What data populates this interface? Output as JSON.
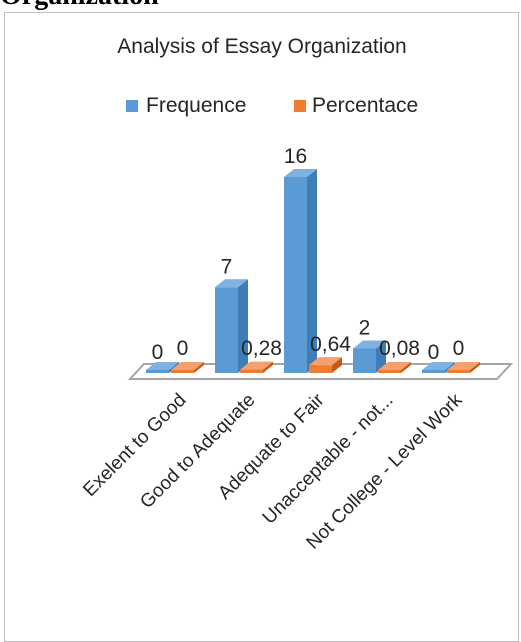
{
  "page": {
    "heading": "Organization"
  },
  "chart_data": {
    "type": "bar",
    "title": "Analysis of Essay Organization",
    "categories": [
      "Exelent to Good",
      "Good to Adequate",
      "Adequate to Fair",
      "Unacceptable - not...",
      "Not College - Level Work"
    ],
    "series": [
      {
        "name": "Frequence",
        "values": [
          0,
          7,
          16,
          2,
          0
        ],
        "labels": [
          "0",
          "7",
          "16",
          "2",
          "0"
        ]
      },
      {
        "name": "Percentace",
        "values": [
          0,
          0.28,
          0.64,
          0.08,
          0
        ],
        "labels": [
          "0",
          "0,28",
          "0,64",
          "0,08",
          "0"
        ]
      }
    ],
    "ylim": [
      0,
      16
    ],
    "legend": "top",
    "grid": false,
    "colors": {
      "frequence": "#5b9bd5",
      "frequence_side": "#3f7db6",
      "frequence_top": "#7fb2e0",
      "percentace": "#ed7d31",
      "percentace_side": "#c55a11",
      "percentace_top": "#f4a070",
      "floor": "#ffffff",
      "floor_edge": "#a6a6a6"
    }
  }
}
